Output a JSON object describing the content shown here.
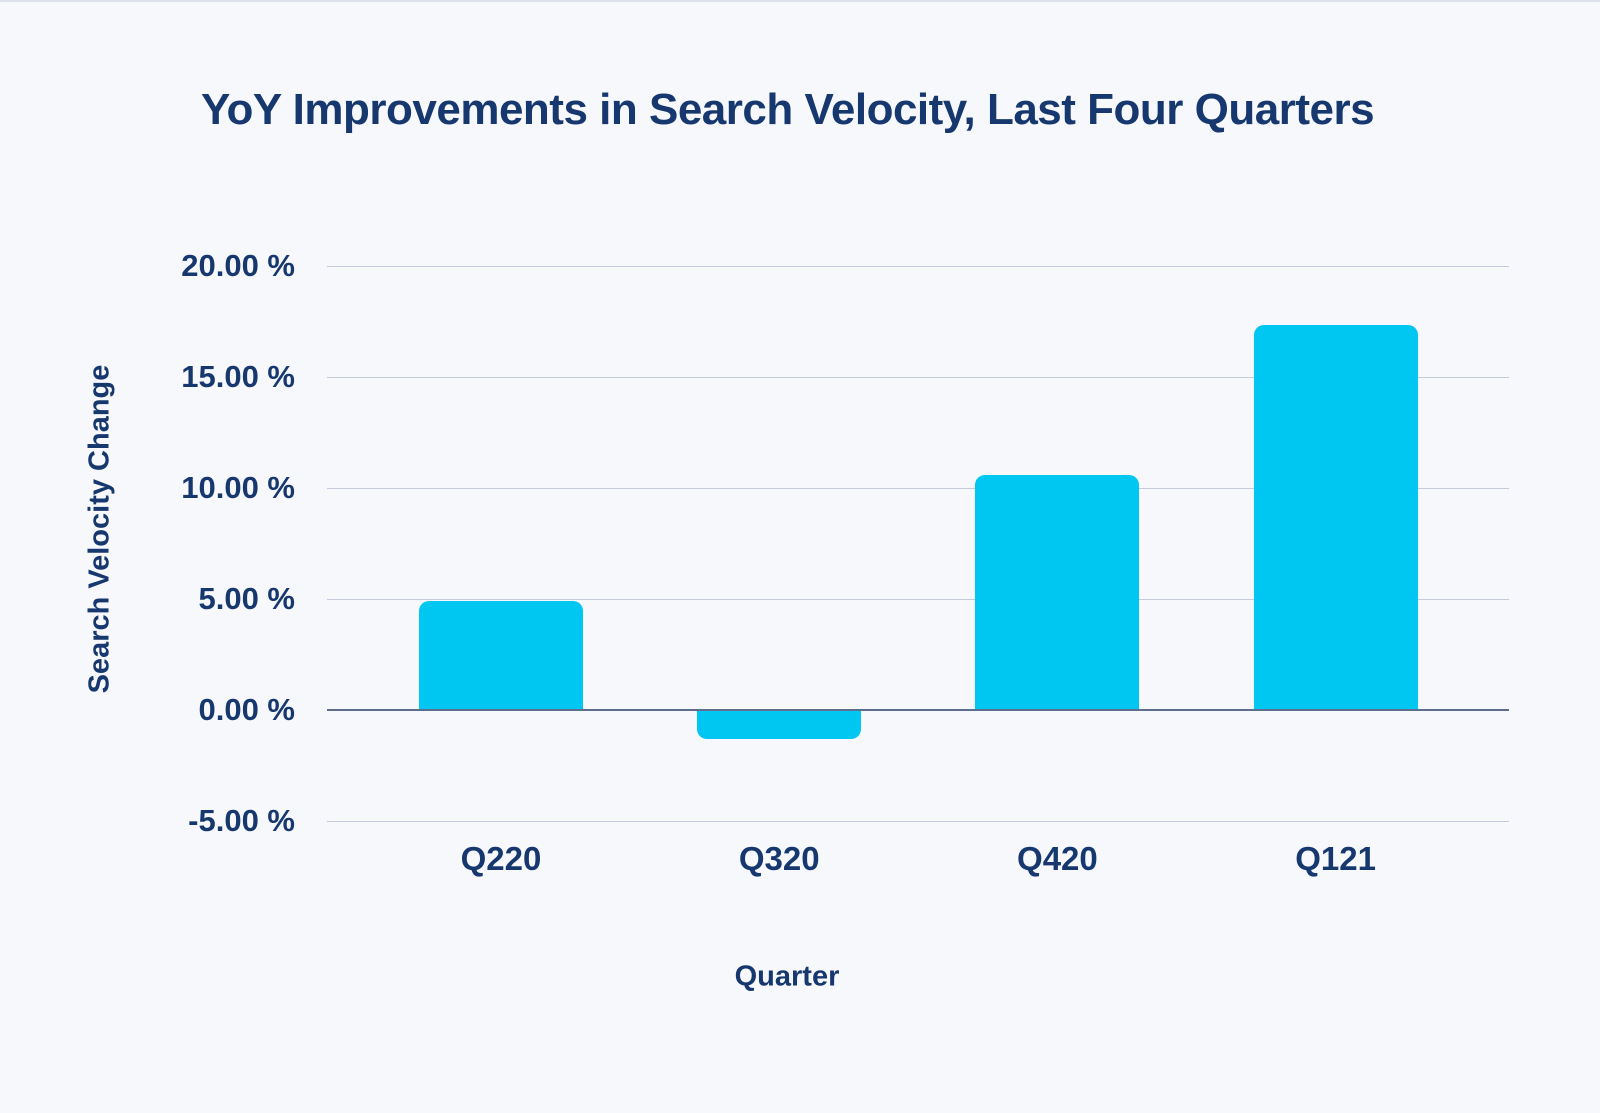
{
  "chart_data": {
    "type": "bar",
    "title": "YoY Improvements in Search Velocity, Last Four Quarters",
    "xlabel": "Quarter",
    "ylabel": "Search Velocity Change",
    "categories": [
      "Q220",
      "Q320",
      "Q420",
      "Q121"
    ],
    "values": [
      4.9,
      -1.25,
      10.6,
      17.35
    ],
    "ylim": [
      -5,
      20
    ],
    "yticks": [
      {
        "value": 20,
        "label": "20.00 %"
      },
      {
        "value": 15,
        "label": "15.00 %"
      },
      {
        "value": 10,
        "label": "10.00 %"
      },
      {
        "value": 5,
        "label": "5.00 %"
      },
      {
        "value": 0,
        "label": "0.00 %"
      },
      {
        "value": -5,
        "label": "-5.00 %"
      }
    ],
    "grid": true,
    "legend": false,
    "colors": {
      "bar": "#00c7f2",
      "text": "#16386e",
      "gridline": "#c3cbdc",
      "zero_line": "#5d6e8e",
      "background": "#f7f8fc"
    }
  }
}
